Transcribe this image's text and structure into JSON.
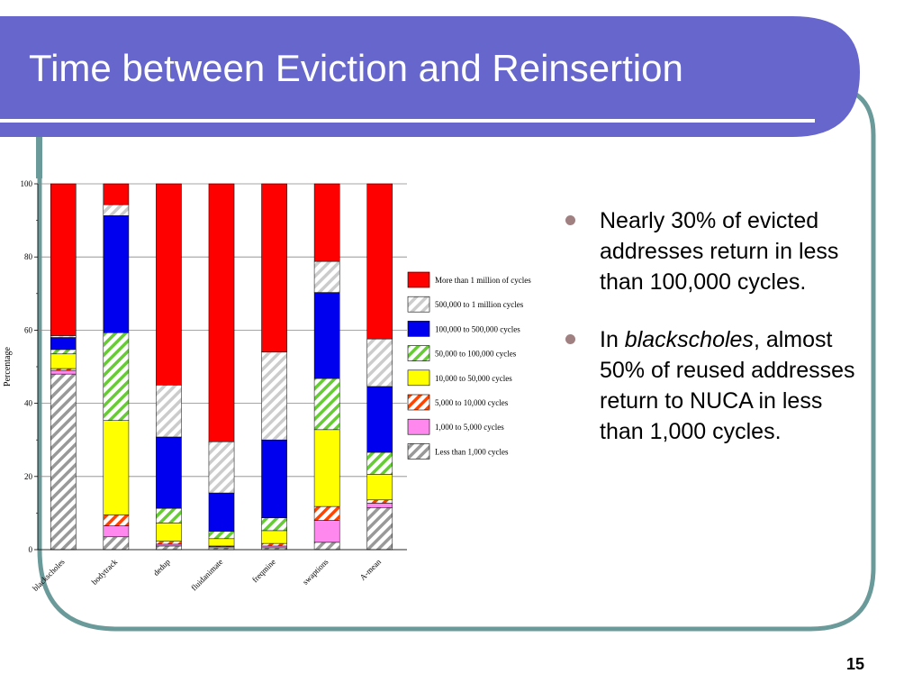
{
  "slide": {
    "title": "Time between Eviction and Reinsertion",
    "page_number": "15",
    "colors": {
      "title_band": "#6666cc",
      "frame_border": "#6a9a9a"
    }
  },
  "bullets": [
    {
      "text": "Nearly 30% of evicted addresses return in less than 100,000 cycles."
    },
    {
      "pre": "In ",
      "emph": "blackscholes",
      "post": ", almost 50% of reused addresses return to NUCA in less than 1,000 cycles."
    }
  ],
  "chart_data": {
    "type": "bar",
    "stacked": true,
    "ylabel": "Percentage",
    "ylim": [
      0,
      100
    ],
    "yticks": [
      0,
      20,
      40,
      60,
      80,
      100
    ],
    "grid": true,
    "legend_position": "right",
    "categories": [
      "blackscholes",
      "bodytrack",
      "dedup",
      "fluidanimate",
      "freqmine",
      "swaptions",
      "A-mean"
    ],
    "series": [
      {
        "name": "Less than 1,000 cycles",
        "color": "#999999",
        "pattern": "hatch",
        "values": [
          48,
          3.5,
          1,
          0.5,
          0.5,
          2,
          11.5
        ]
      },
      {
        "name": "1,000 to 5,000 cycles",
        "color": "#ff88ee",
        "pattern": "solid",
        "values": [
          1,
          3,
          0.5,
          0.3,
          0.5,
          6,
          1.2
        ]
      },
      {
        "name": "5,000 to 10,000 cycles",
        "color": "#ff4400",
        "pattern": "hatch",
        "values": [
          0.5,
          3,
          0.8,
          0.2,
          0.7,
          3.8,
          0.9
        ]
      },
      {
        "name": "10,000 to 50,000 cycles",
        "color": "#ffff00",
        "pattern": "solid",
        "values": [
          4,
          25.8,
          5,
          2,
          3.5,
          21,
          7
        ]
      },
      {
        "name": "50,000 to 100,000 cycles",
        "color": "#66cc33",
        "pattern": "hatch",
        "values": [
          1.2,
          24,
          4,
          2,
          3.5,
          14,
          6
        ]
      },
      {
        "name": "100,000 to 500,000 cycles",
        "color": "#0000ee",
        "pattern": "solid",
        "values": [
          3.3,
          32,
          19.5,
          10.5,
          21.3,
          23.5,
          18
        ]
      },
      {
        "name": "500,000 to 1 million cycles",
        "color": "#cccccc",
        "pattern": "hatch",
        "values": [
          0.5,
          3,
          14.2,
          14,
          24,
          8.5,
          13
        ]
      },
      {
        "name": "More than 1 million of cycles",
        "color": "#ff0000",
        "pattern": "solid",
        "values": [
          41.5,
          5.7,
          55,
          70.5,
          46,
          21.2,
          42.4
        ]
      }
    ]
  }
}
